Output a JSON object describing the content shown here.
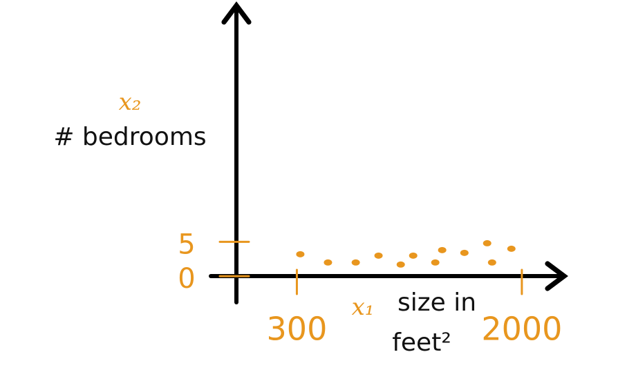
{
  "chart_data": {
    "type": "scatter",
    "y_label_symbol": "x₂",
    "y_label": "# bedrooms",
    "x_label_symbol": "x₁",
    "x_label_lines": [
      "size in",
      "feet²"
    ],
    "x": [
      326,
      535,
      745,
      917,
      1085,
      1179,
      1346,
      1398,
      1566,
      1738,
      1775,
      1921
    ],
    "values": [
      3.2,
      2,
      2,
      3,
      1.7,
      3,
      2,
      3.8,
      3.4,
      4.8,
      2,
      4
    ],
    "color": "#e8961e",
    "xlim": [
      -350,
      2340
    ],
    "xticks": [
      300,
      2000
    ],
    "ylim": [
      -4,
      39
    ],
    "yticks": [
      0,
      5
    ]
  }
}
